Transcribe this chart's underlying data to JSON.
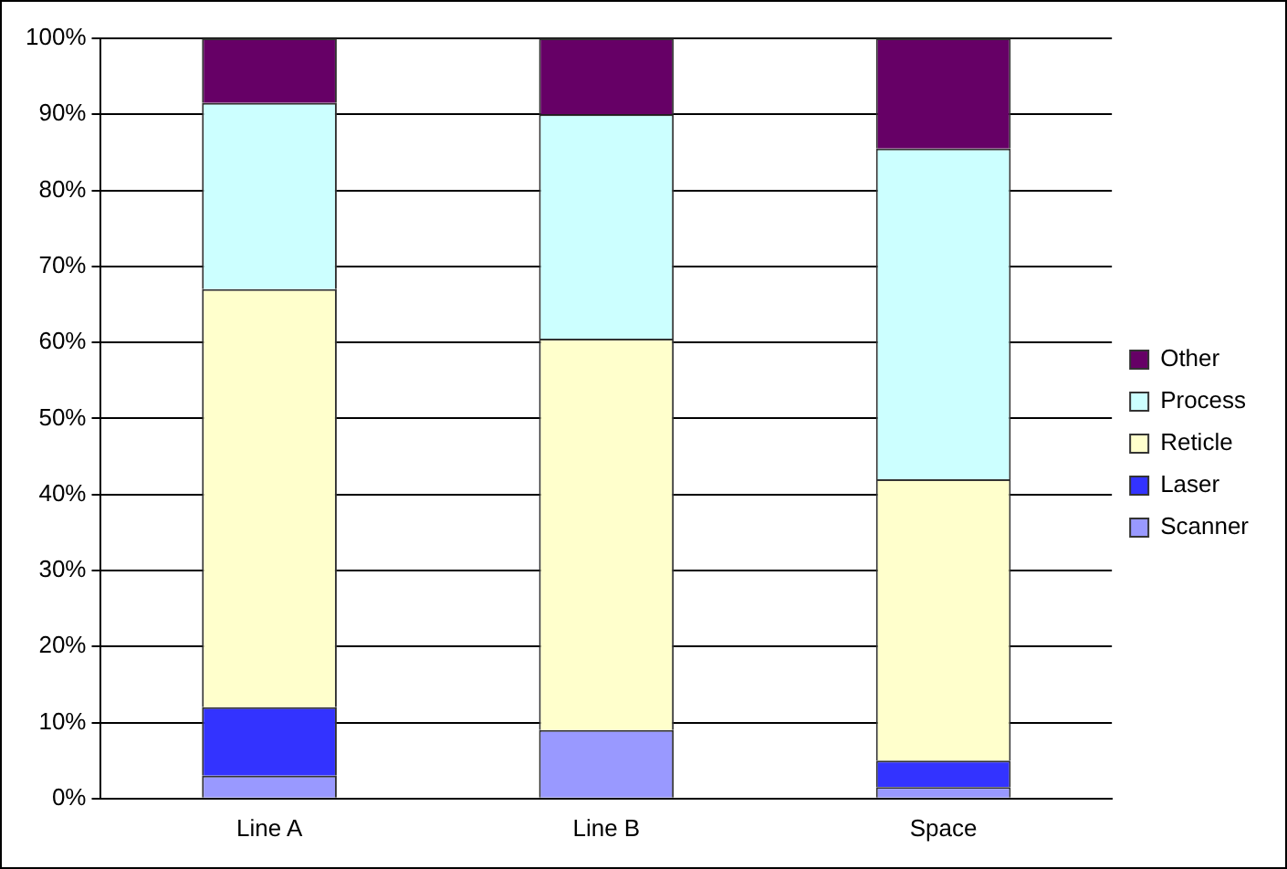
{
  "chart_data": {
    "type": "bar",
    "stacked": true,
    "categories": [
      "Line A",
      "Line B",
      "Space"
    ],
    "series": [
      {
        "name": "Scanner",
        "color": "#9999ff",
        "values": [
          3,
          9,
          1.5
        ]
      },
      {
        "name": "Laser",
        "color": "#3333ff",
        "values": [
          9,
          0,
          3.5
        ]
      },
      {
        "name": "Reticle",
        "color": "#ffffcc",
        "values": [
          55,
          51.5,
          37
        ]
      },
      {
        "name": "Process",
        "color": "#ccffff",
        "values": [
          24.5,
          29.5,
          43.5
        ]
      },
      {
        "name": "Other",
        "color": "#660066",
        "values": [
          8.5,
          10,
          14.5
        ]
      }
    ],
    "ylim": [
      0,
      100
    ],
    "yticks": [
      {
        "value": 0,
        "label": "0%"
      },
      {
        "value": 10,
        "label": "10%"
      },
      {
        "value": 20,
        "label": "20%"
      },
      {
        "value": 30,
        "label": "30%"
      },
      {
        "value": 40,
        "label": "40%"
      },
      {
        "value": 50,
        "label": "50%"
      },
      {
        "value": 60,
        "label": "60%"
      },
      {
        "value": 70,
        "label": "70%"
      },
      {
        "value": 80,
        "label": "80%"
      },
      {
        "value": 90,
        "label": "90%"
      },
      {
        "value": 100,
        "label": "100%"
      }
    ],
    "grid": "y",
    "legend": "right"
  }
}
